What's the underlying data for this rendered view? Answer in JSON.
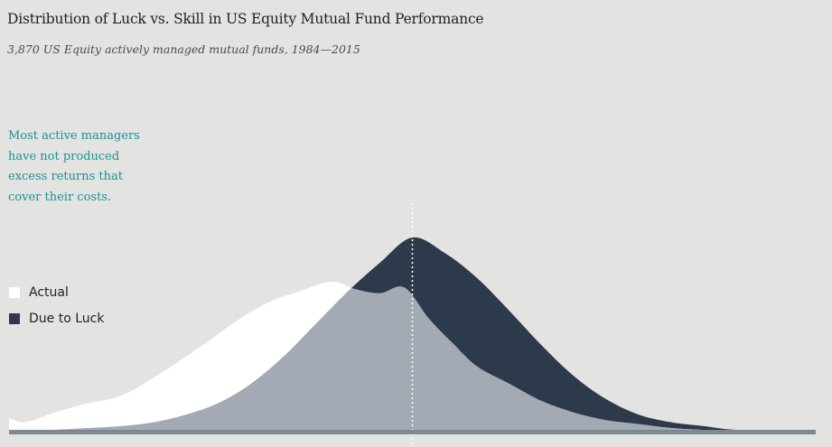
{
  "title": "Distribution of Luck vs. Skill in US Equity Mutual Fund Performance",
  "subtitle": "3,870 US Equity actively managed mutual funds, 1984—2015",
  "annotation": {
    "lines": [
      "Most active managers",
      "have not produced",
      "excess returns that",
      "cover their costs."
    ]
  },
  "legend": {
    "items": [
      {
        "label": "Actual",
        "color": "#ffffff"
      },
      {
        "label": "Due to Luck",
        "color": "#2c3a4b"
      }
    ]
  },
  "colors": {
    "background": "#e3e3e1",
    "actual": "#ffffff",
    "luck": "#2c3a4b",
    "overlap": "#a4aab3",
    "baseline": "#7e8894",
    "zero_line": "#ffffff",
    "annotation": "#17939a"
  },
  "chart_data": {
    "type": "area",
    "title": "Distribution of Luck vs. Skill in US Equity Mutual Fund Performance",
    "subtitle": "3,870 US Equity actively managed mutual funds, 1984—2015",
    "xlabel": "",
    "ylabel": "",
    "x_range": [
      0,
      100
    ],
    "y_range": [
      0,
      100
    ],
    "zero_line_x": 50,
    "grid": false,
    "legend_placement": "left",
    "series": [
      {
        "name": "Actual",
        "x": [
          0,
          2,
          5,
          9,
          14,
          19,
          24,
          28,
          32,
          36,
          40,
          43,
          46,
          49,
          52,
          55,
          58,
          62,
          66,
          70,
          74,
          78,
          82,
          86,
          90,
          95,
          100
        ],
        "y": [
          6,
          4,
          8,
          13,
          18,
          30,
          44,
          56,
          66,
          72,
          77,
          73,
          71,
          74,
          58,
          45,
          33,
          24,
          15,
          9,
          5,
          3,
          1,
          0,
          0,
          0,
          0
        ]
      },
      {
        "name": "Due to Luck",
        "x": [
          0,
          5,
          10,
          14,
          18,
          22,
          26,
          30,
          34,
          38,
          42,
          46,
          50,
          54,
          58,
          62,
          66,
          70,
          74,
          78,
          82,
          86,
          90,
          95,
          100
        ],
        "y": [
          0,
          0,
          1,
          2,
          4,
          8,
          14,
          24,
          38,
          55,
          72,
          87,
          100,
          92,
          79,
          62,
          44,
          28,
          16,
          8,
          4,
          2,
          0,
          0,
          0
        ]
      }
    ]
  }
}
